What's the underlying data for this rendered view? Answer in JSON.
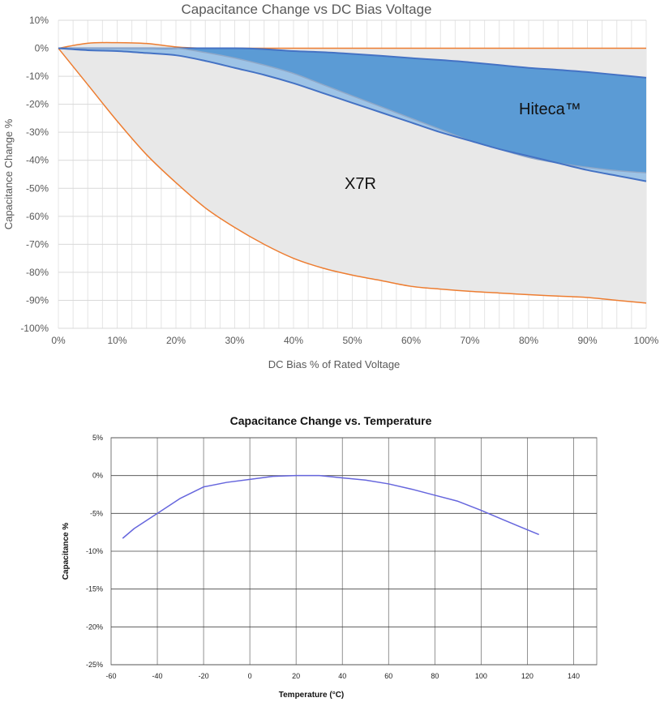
{
  "chart_data": [
    {
      "type": "area",
      "title": "Capacitance Change vs DC Bias Voltage",
      "xlabel": "DC Bias % of Rated Voltage",
      "ylabel": "Capacitance Change %",
      "xlim": [
        0,
        100
      ],
      "ylim": [
        -100,
        10
      ],
      "xticks": [
        "0%",
        "10%",
        "20%",
        "30%",
        "40%",
        "50%",
        "60%",
        "70%",
        "80%",
        "90%",
        "100%"
      ],
      "yticks": [
        "10%",
        "0%",
        "-10%",
        "-20%",
        "-30%",
        "-40%",
        "-50%",
        "-60%",
        "-70%",
        "-80%",
        "-90%",
        "-100%"
      ],
      "grid": true,
      "annotations": [
        "Hiteca™",
        "X7R"
      ],
      "x": [
        0,
        5,
        10,
        15,
        20,
        25,
        30,
        35,
        40,
        45,
        50,
        55,
        60,
        65,
        70,
        75,
        80,
        85,
        90,
        95,
        100
      ],
      "series": [
        {
          "color": "#ed7d31",
          "values": [
            0,
            1.8,
            2,
            1.7,
            0.5,
            0,
            0,
            0,
            0,
            0,
            0,
            0,
            0,
            0,
            0,
            0,
            0,
            0,
            0,
            0,
            0
          ]
        },
        {
          "color": "#ed7d31",
          "values": [
            0,
            -13,
            -26,
            -38,
            -48,
            -57,
            -64,
            -70,
            -75,
            -78.5,
            -81,
            -83,
            -85,
            -86,
            -86.8,
            -87.4,
            -88,
            -88.5,
            -89,
            -90,
            -91
          ]
        },
        {
          "color": "#4472c4",
          "values": [
            0,
            0,
            0,
            0,
            0,
            0,
            0,
            -0.3,
            -1,
            -1.4,
            -2,
            -2.7,
            -3.5,
            -4.2,
            -5,
            -6,
            -7,
            -7.7,
            -8.5,
            -9.5,
            -10.5
          ]
        },
        {
          "color": "#8fa8c8",
          "values": [
            0,
            0,
            0,
            0,
            0,
            -1.5,
            -3.5,
            -6,
            -9,
            -13,
            -17,
            -21,
            -25,
            -29,
            -33,
            -36,
            -39,
            -41,
            -42.5,
            -43.7,
            -44.5
          ]
        },
        {
          "color": "#4472c4",
          "values": [
            0,
            -0.7,
            -1,
            -1.7,
            -2.5,
            -4.5,
            -7,
            -9.5,
            -12.5,
            -16,
            -19.5,
            -23,
            -26.5,
            -30,
            -33,
            -36,
            -38.5,
            -41,
            -43.5,
            -45.5,
            -47.5
          ]
        }
      ],
      "colors": {
        "x7r_fill": "#e8e8e8",
        "hiteca_fill": "#5b9bd5",
        "hiteca_band": "#9dc3e6",
        "zero_line": "#888888"
      }
    },
    {
      "type": "line",
      "title": "Capacitance Change vs. Temperature",
      "xlabel": "Temperature (°C)",
      "ylabel": "Capacitance %",
      "xlim": [
        -60,
        150
      ],
      "ylim": [
        -25,
        5
      ],
      "xticks": [
        "-60",
        "-40",
        "-20",
        "0",
        "20",
        "40",
        "60",
        "80",
        "100",
        "120",
        "140"
      ],
      "yticks": [
        "5%",
        "0%",
        "-5%",
        "-10%",
        "-15%",
        "-20%",
        "-25%"
      ],
      "grid": true,
      "color": "#6666dd",
      "x": [
        -55,
        -50,
        -40,
        -30,
        -20,
        -10,
        0,
        10,
        20,
        30,
        40,
        50,
        60,
        70,
        80,
        90,
        100,
        110,
        125
      ],
      "values": [
        -8.3,
        -7,
        -5,
        -3,
        -1.5,
        -0.9,
        -0.5,
        -0.1,
        0,
        0,
        -0.3,
        -0.6,
        -1.1,
        -1.8,
        -2.6,
        -3.4,
        -4.6,
        -5.9,
        -7.8
      ]
    }
  ]
}
